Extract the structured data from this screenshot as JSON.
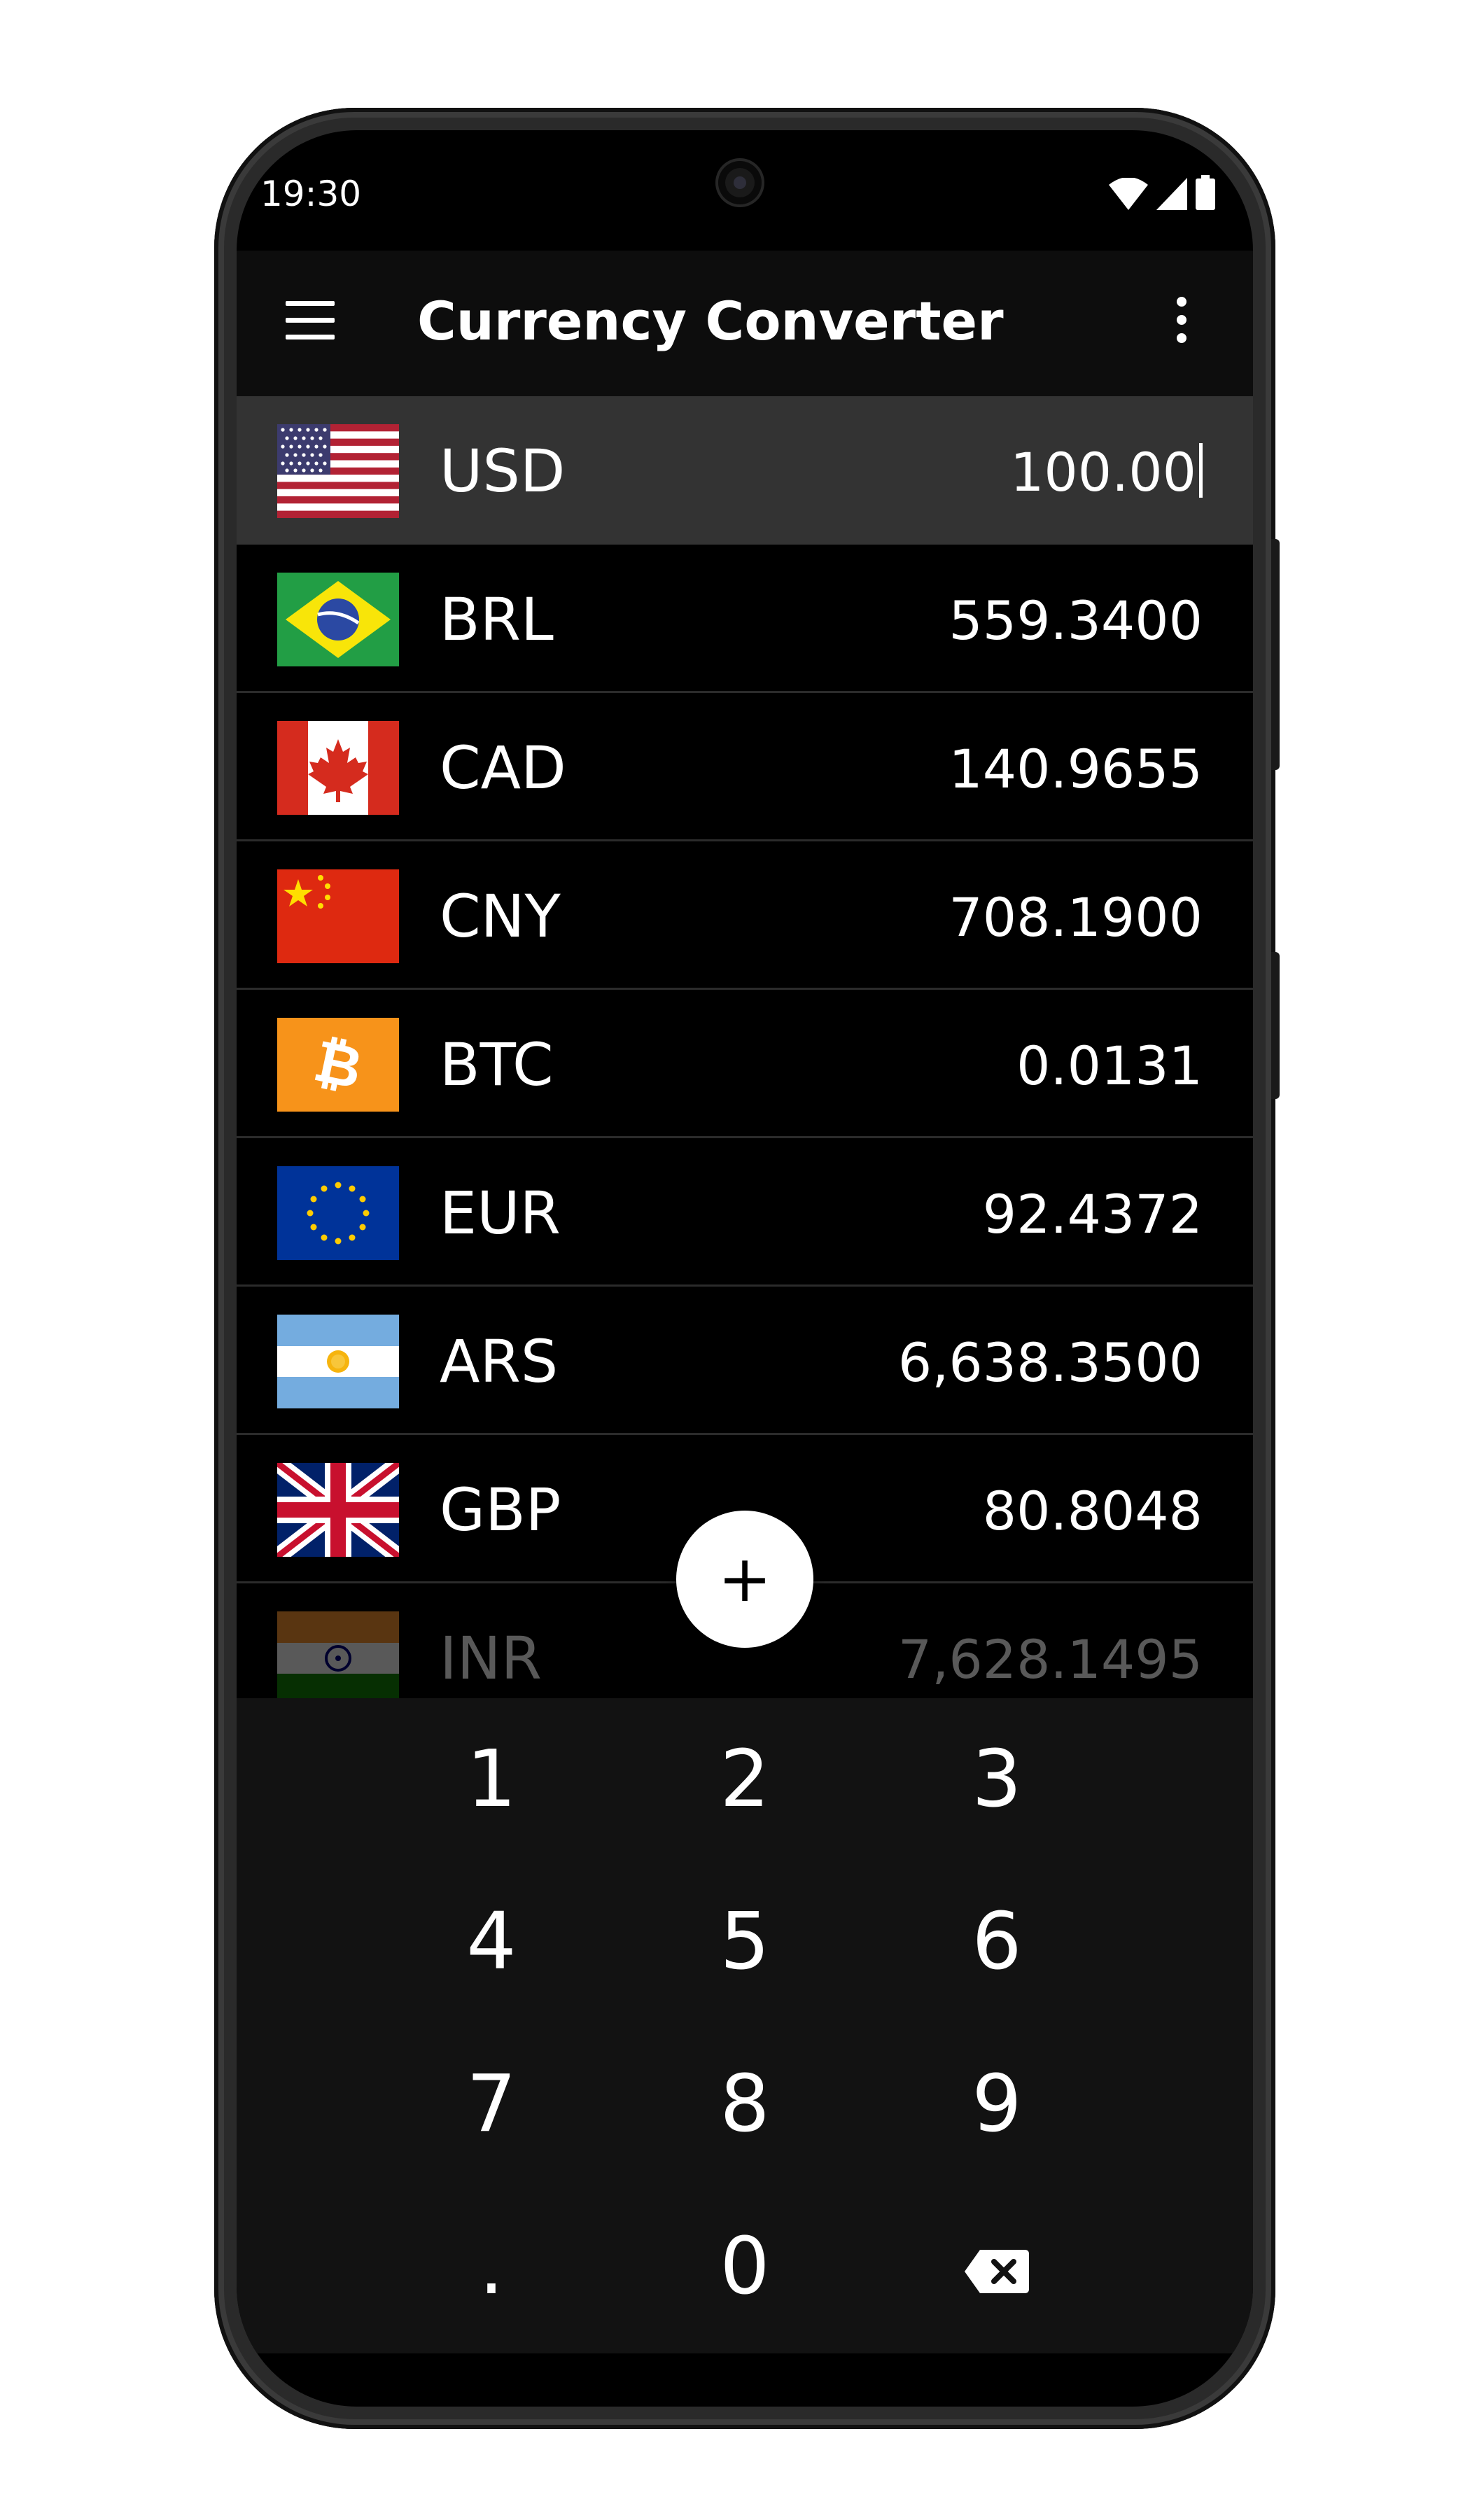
{
  "status": {
    "time": "19:30"
  },
  "app_bar": {
    "title": "Currency Converter"
  },
  "currencies": [
    {
      "code": "USD",
      "amount": "100.00",
      "flag_icon": "us-flag-icon"
    },
    {
      "code": "BRL",
      "amount": "559.3400",
      "flag_icon": "brazil-flag-icon"
    },
    {
      "code": "CAD",
      "amount": "140.9655",
      "flag_icon": "canada-flag-icon"
    },
    {
      "code": "CNY",
      "amount": "708.1900",
      "flag_icon": "china-flag-icon"
    },
    {
      "code": "BTC",
      "amount": "0.0131",
      "flag_icon": "bitcoin-icon"
    },
    {
      "code": "EUR",
      "amount": "92.4372",
      "flag_icon": "eu-flag-icon"
    },
    {
      "code": "ARS",
      "amount": "6,638.3500",
      "flag_icon": "argentina-flag-icon"
    },
    {
      "code": "GBP",
      "amount": "80.8048",
      "flag_icon": "uk-flag-icon"
    },
    {
      "code": "INR",
      "amount": "7,628.1495",
      "flag_icon": "india-flag-icon"
    }
  ],
  "fab": {
    "label": "+"
  },
  "keypad": {
    "keys": [
      "1",
      "2",
      "3",
      "4",
      "5",
      "6",
      "7",
      "8",
      "9",
      ".",
      "0"
    ],
    "backspace_icon": "backspace-icon"
  },
  "colors": {
    "background": "#000000",
    "app_bar": "#0d0d0d",
    "selected_row": "#333333",
    "keypad": "#121212",
    "text": "#ffffff"
  }
}
